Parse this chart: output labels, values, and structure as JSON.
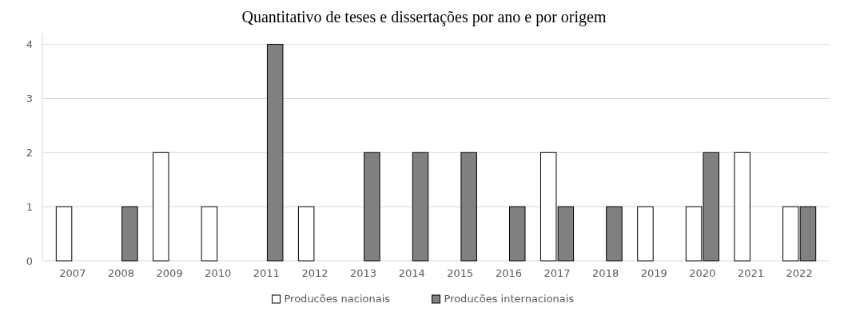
{
  "chart_data": {
    "type": "bar",
    "title": "Quantitativo de teses e dissertações por ano e por origem",
    "categories": [
      "2007",
      "2008",
      "2009",
      "2010",
      "2011",
      "2012",
      "2013",
      "2014",
      "2015",
      "2016",
      "2017",
      "2018",
      "2019",
      "2020",
      "2021",
      "2022"
    ],
    "series": [
      {
        "name": "Producões nacionais",
        "color": "#ffffff",
        "values": [
          1,
          null,
          2,
          1,
          null,
          1,
          null,
          null,
          null,
          null,
          2,
          null,
          1,
          1,
          2,
          1
        ]
      },
      {
        "name": "Producões internacionais",
        "color": "#808080",
        "values": [
          null,
          1,
          null,
          null,
          4,
          null,
          2,
          2,
          2,
          1,
          1,
          1,
          null,
          2,
          null,
          1
        ]
      }
    ],
    "ylim": [
      0,
      4.2
    ],
    "yticks": [
      0,
      1,
      2,
      3,
      4
    ],
    "grid": "y",
    "legend": "bottom"
  }
}
